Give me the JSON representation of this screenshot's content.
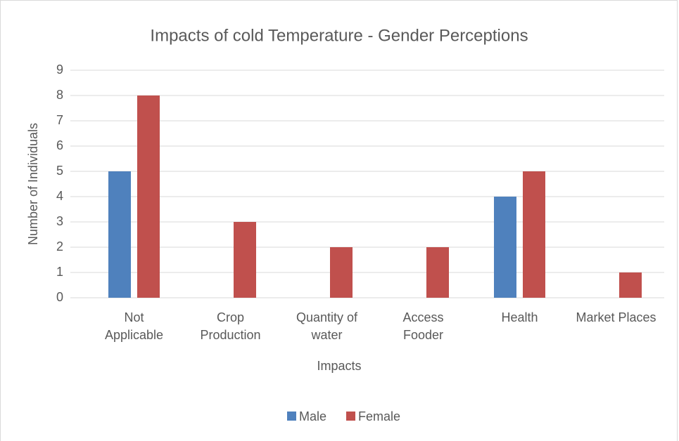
{
  "chart_data": {
    "type": "bar",
    "title": "Impacts of cold Temperature - Gender Perceptions",
    "x_label": "Impacts",
    "y_label": "Number of Individuals",
    "categories": [
      "Not\nApplicable",
      "Crop\nProduction",
      "Quantity of\nwater",
      "Access\nFooder",
      "Health",
      "Market Places"
    ],
    "series": [
      {
        "name": "Male",
        "color": "#4f81bd",
        "values": [
          5,
          0,
          0,
          0,
          4,
          0
        ]
      },
      {
        "name": "Female",
        "color": "#c0504d",
        "values": [
          8,
          3,
          2,
          2,
          5,
          1
        ]
      }
    ],
    "ylim": [
      0,
      9
    ],
    "yticks": [
      0,
      1,
      2,
      3,
      4,
      5,
      6,
      7,
      8,
      9
    ],
    "grid": true,
    "legend": "bottom"
  }
}
